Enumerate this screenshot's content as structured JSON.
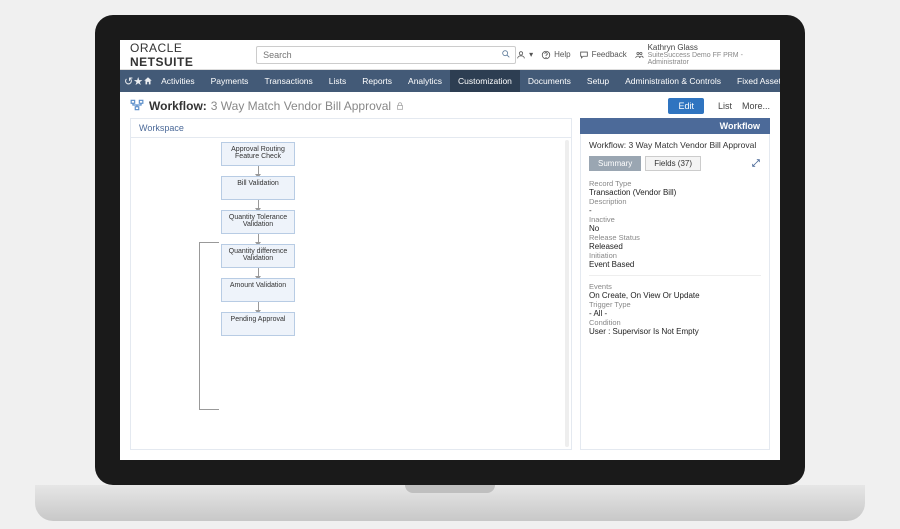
{
  "header": {
    "logo_prefix": "ORACLE",
    "logo_suffix": "NETSUITE",
    "search_placeholder": "Search",
    "help_label": "Help",
    "feedback_label": "Feedback",
    "user_name": "Kathryn Glass",
    "user_role": "SuiteSuccess Demo FF PRM - Administrator"
  },
  "nav": {
    "items": [
      "Activities",
      "Payments",
      "Transactions",
      "Lists",
      "Reports",
      "Analytics",
      "Customization",
      "Documents",
      "Setup",
      "Administration & Controls",
      "Fixed Assets"
    ],
    "active_index": 6
  },
  "title": {
    "prefix": "Workflow:",
    "name": "3 Way Match Vendor Bill Approval",
    "edit_label": "Edit",
    "list_label": "List",
    "more_label": "More..."
  },
  "workspace": {
    "label": "Workspace",
    "nodes": [
      "Approval Routing Feature Check",
      "Bill Validation",
      "Quantity Tolerance Validation",
      "Quantity difference Validation",
      "Amount Validation",
      "Pending Approval"
    ]
  },
  "side": {
    "header": "Workflow",
    "title": "Workflow: 3 Way Match Vendor Bill Approval",
    "tabs": {
      "summary": "Summary",
      "fields": "Fields (37)"
    },
    "fields1": [
      {
        "label": "Record Type",
        "value": "Transaction (Vendor Bill)"
      },
      {
        "label": "Description",
        "value": "-"
      },
      {
        "label": "Inactive",
        "value": "No"
      },
      {
        "label": "Release Status",
        "value": "Released"
      },
      {
        "label": "Initiation",
        "value": "Event Based"
      }
    ],
    "fields2": [
      {
        "label": "Events",
        "value": "On Create, On View Or Update"
      },
      {
        "label": "Trigger Type",
        "value": "- All -"
      },
      {
        "label": "Condition",
        "value": "User : Supervisor Is Not Empty"
      }
    ]
  },
  "style": {
    "nav_bg": "#435a77",
    "nav_active_bg": "#2d3e52",
    "node_bg": "#eef3fa",
    "node_border": "#b8cce4",
    "side_header_bg": "#4c6a99",
    "edit_btn_bg": "#2f74c0"
  }
}
